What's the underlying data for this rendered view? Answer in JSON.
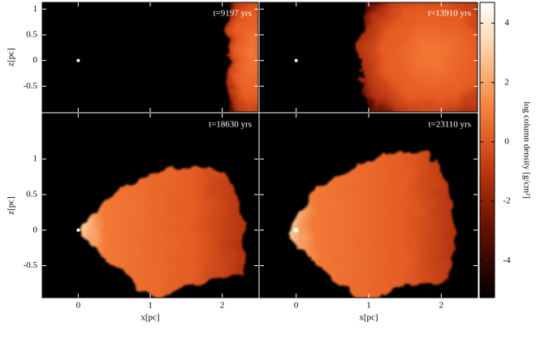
{
  "chart_data": {
    "type": "image_grid",
    "xlabel": "x[pc]",
    "ylabel": "z[pc]",
    "xlim": [
      -0.5,
      2.5
    ],
    "xticks": [
      0,
      1,
      2
    ],
    "panels": [
      {
        "title": "t=9197 yrs",
        "ylim": [
          -1.0,
          1.13
        ],
        "yticks": [
          1,
          0.5,
          0,
          -0.5
        ]
      },
      {
        "title": "t=13910 yrs",
        "ylim": [
          -1.0,
          1.13
        ],
        "yticks": [
          1,
          0.5,
          0,
          -0.5
        ]
      },
      {
        "title": "t=18630 yrs",
        "ylim": [
          -0.95,
          1.64
        ],
        "yticks": [
          1,
          0.5,
          0,
          -0.5
        ]
      },
      {
        "title": "t=23110 yrs",
        "ylim": [
          -0.95,
          1.64
        ],
        "yticks": [
          1,
          0.5,
          0,
          -0.5
        ]
      }
    ],
    "colorbar": {
      "label": "log column density [g/cm²]",
      "lim": [
        -5.25,
        4.7
      ],
      "ticks": [
        4,
        2,
        0,
        -2,
        -4
      ]
    }
  }
}
